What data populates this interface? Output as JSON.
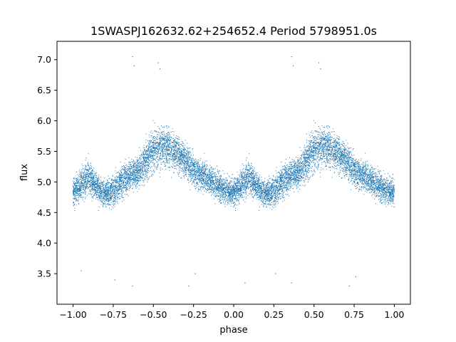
{
  "chart_data": {
    "type": "scatter",
    "title": "1SWASPJ162632.62+254652.4 Period 5798951.0s",
    "xlabel": "phase",
    "ylabel": "flux",
    "xlim": [
      -1.1,
      1.1
    ],
    "ylim": [
      3.0,
      7.3
    ],
    "xticks": [
      -1.0,
      -0.75,
      -0.5,
      -0.25,
      0.0,
      0.25,
      0.5,
      0.75,
      1.0
    ],
    "xtick_labels": [
      "−1.00",
      "−0.75",
      "−0.50",
      "−0.25",
      "0.00",
      "0.25",
      "0.50",
      "0.75",
      "1.00"
    ],
    "yticks": [
      3.5,
      4.0,
      4.5,
      5.0,
      5.5,
      6.0,
      6.5,
      7.0
    ],
    "ytick_labels": [
      "3.5",
      "4.0",
      "4.5",
      "5.0",
      "5.5",
      "6.0",
      "6.5",
      "7.0"
    ],
    "grid": false,
    "marker_color": "#1f77b4",
    "profile": {
      "phase": [
        0.0,
        0.05,
        0.1,
        0.15,
        0.2,
        0.25,
        0.3,
        0.35,
        0.4,
        0.45,
        0.5,
        0.55,
        0.6,
        0.65,
        0.7,
        0.75,
        0.8,
        0.85,
        0.9,
        0.95,
        1.0
      ],
      "median_flux": [
        4.85,
        4.95,
        5.1,
        4.9,
        4.8,
        4.85,
        5.0,
        5.1,
        5.15,
        5.35,
        5.5,
        5.6,
        5.55,
        5.45,
        5.35,
        5.2,
        5.1,
        5.05,
        4.95,
        4.85,
        4.85
      ],
      "scatter": [
        0.35,
        0.4,
        0.4,
        0.35,
        0.3,
        0.35,
        0.4,
        0.35,
        0.35,
        0.45,
        0.5,
        0.5,
        0.45,
        0.4,
        0.4,
        0.4,
        0.35,
        0.35,
        0.35,
        0.35,
        0.35
      ]
    },
    "outliers": [
      {
        "x": -0.63,
        "y": 7.05
      },
      {
        "x": -0.62,
        "y": 6.9
      },
      {
        "x": -0.47,
        "y": 6.95
      },
      {
        "x": -0.46,
        "y": 6.85
      },
      {
        "x": 0.36,
        "y": 7.05
      },
      {
        "x": 0.37,
        "y": 6.9
      },
      {
        "x": 0.53,
        "y": 6.95
      },
      {
        "x": 0.54,
        "y": 6.85
      },
      {
        "x": -0.95,
        "y": 3.55
      },
      {
        "x": -0.74,
        "y": 3.4
      },
      {
        "x": -0.28,
        "y": 3.3
      },
      {
        "x": 0.07,
        "y": 3.35
      },
      {
        "x": 0.26,
        "y": 3.5
      },
      {
        "x": 0.72,
        "y": 3.3
      },
      {
        "x": -0.63,
        "y": 3.3
      },
      {
        "x": -0.24,
        "y": 3.5
      },
      {
        "x": 0.36,
        "y": 3.35
      },
      {
        "x": 0.76,
        "y": 3.45
      }
    ]
  }
}
